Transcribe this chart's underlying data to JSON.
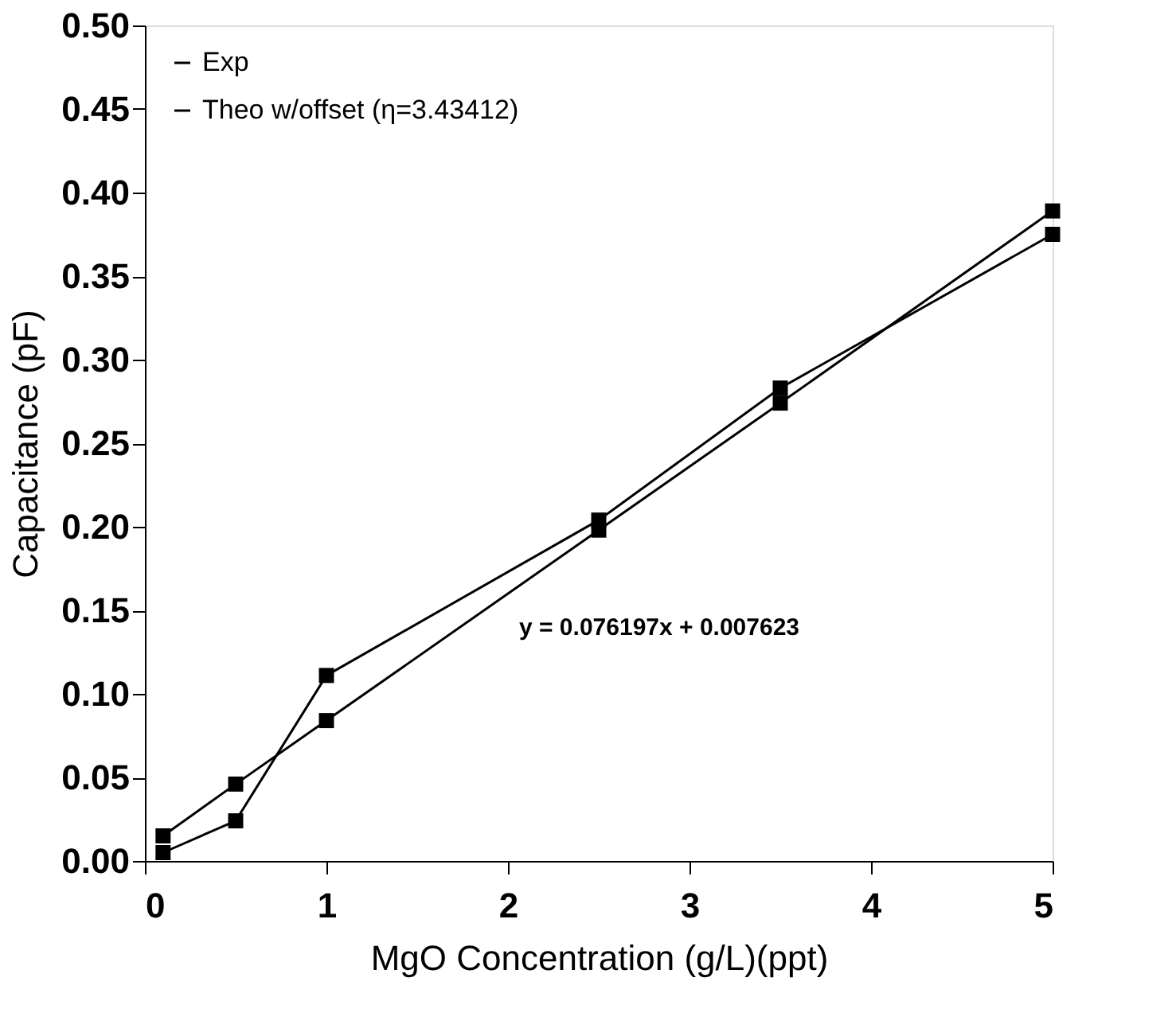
{
  "chart_data": {
    "type": "line",
    "xlabel": "MgO Concentration (g/L)(ppt)",
    "ylabel": "Capacitance (pF)",
    "x": [
      0.1,
      0.5,
      1,
      2.5,
      3.5,
      5
    ],
    "series": [
      {
        "name": "Exp",
        "color": "#000000",
        "values": [
          0.005,
          0.024,
          0.111,
          0.204,
          0.283,
          0.375
        ]
      },
      {
        "name": "Theo w/offset (η=3.43412)",
        "color": "#000000",
        "values": [
          0.015,
          0.046,
          0.084,
          0.198,
          0.274,
          0.389
        ]
      }
    ],
    "xlim": [
      0,
      5
    ],
    "xticks": [
      0,
      1,
      2,
      3,
      4,
      5
    ],
    "ylim": [
      0,
      0.5
    ],
    "yticks": [
      {
        "value": 0,
        "label": "0.00"
      },
      {
        "value": 0.05,
        "label": "0.05"
      },
      {
        "value": 0.1,
        "label": "0.10"
      },
      {
        "value": 0.15,
        "label": "0.15"
      },
      {
        "value": 0.2,
        "label": "0.20"
      },
      {
        "value": 0.25,
        "label": "0.25"
      },
      {
        "value": 0.3,
        "label": "0.30"
      },
      {
        "value": 0.35,
        "label": "0.35"
      },
      {
        "value": 0.4,
        "label": "0.40"
      },
      {
        "value": 0.45,
        "label": "0.45"
      },
      {
        "value": 0.5,
        "label": "0.50"
      }
    ],
    "annotations": [
      "y = 0.076197x + 0.007623"
    ],
    "legend": "top left",
    "marker": "square",
    "line_style": "solid",
    "grid": false
  }
}
